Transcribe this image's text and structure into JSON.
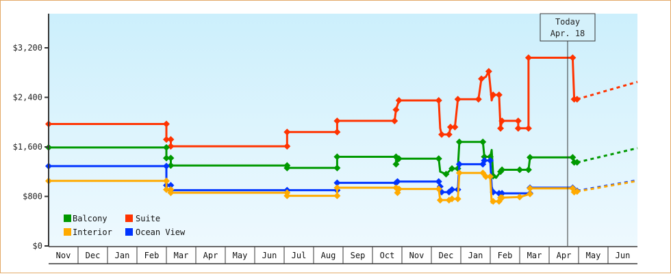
{
  "chart_data": {
    "type": "line",
    "title": "",
    "xlabel": "",
    "ylabel": "",
    "ylim": [
      0,
      3900
    ],
    "yticks": [
      {
        "label": "$0",
        "value": 0
      },
      {
        "label": "$800",
        "value": 800
      },
      {
        "label": "$1,600",
        "value": 1600
      },
      {
        "label": "$2,400",
        "value": 2400
      },
      {
        "label": "$3,200",
        "value": 3200
      }
    ],
    "months": [
      "Nov",
      "Dec",
      "Jan",
      "Feb",
      "Mar",
      "Apr",
      "May",
      "Jun",
      "Jul",
      "Aug",
      "Sep",
      "Oct",
      "Nov",
      "Dec",
      "Jan",
      "Feb",
      "Mar",
      "Apr",
      "May",
      "Jun"
    ],
    "grid": false,
    "legend_position": "bottom-left inside plot",
    "annotation": {
      "line1": "Today",
      "line2": "Apr. 18"
    },
    "series": [
      {
        "name": "Suite",
        "color": "#ff3300",
        "points": [
          [
            0,
            1970
          ],
          [
            4,
            1970
          ],
          [
            4,
            1720
          ],
          [
            4.15,
            1720
          ],
          [
            4.15,
            1610
          ],
          [
            8.1,
            1610
          ],
          [
            8.1,
            1840
          ],
          [
            9.8,
            1840
          ],
          [
            9.8,
            2020
          ],
          [
            11.75,
            2020
          ],
          [
            11.8,
            2200
          ],
          [
            11.9,
            2350
          ],
          [
            13.25,
            2350
          ],
          [
            13.3,
            1900
          ],
          [
            13.35,
            1800
          ],
          [
            13.6,
            1800
          ],
          [
            13.65,
            1920
          ],
          [
            13.8,
            1920
          ],
          [
            13.9,
            2370
          ],
          [
            14.6,
            2370
          ],
          [
            14.7,
            2700
          ],
          [
            14.85,
            2730
          ],
          [
            14.95,
            2820
          ],
          [
            15.05,
            2350
          ],
          [
            15.1,
            2440
          ],
          [
            15.3,
            2440
          ],
          [
            15.35,
            1900
          ],
          [
            15.4,
            2020
          ],
          [
            15.95,
            2020
          ],
          [
            15.95,
            1900
          ],
          [
            16.3,
            1900
          ],
          [
            16.3,
            3040
          ],
          [
            17.8,
            3040
          ],
          [
            17.85,
            2370
          ],
          [
            17.95,
            2370
          ]
        ],
        "projection": [
          [
            17.95,
            2370
          ],
          [
            20,
            2650
          ]
        ]
      },
      {
        "name": "Balcony",
        "color": "#009900",
        "points": [
          [
            0,
            1590
          ],
          [
            4,
            1590
          ],
          [
            4,
            1420
          ],
          [
            4.15,
            1420
          ],
          [
            4.15,
            1300
          ],
          [
            8.1,
            1300
          ],
          [
            8.1,
            1260
          ],
          [
            9.8,
            1260
          ],
          [
            9.8,
            1440
          ],
          [
            11.8,
            1440
          ],
          [
            11.8,
            1320
          ],
          [
            11.9,
            1410
          ],
          [
            13.25,
            1410
          ],
          [
            13.3,
            1200
          ],
          [
            13.5,
            1160
          ],
          [
            13.7,
            1250
          ],
          [
            13.9,
            1250
          ],
          [
            13.95,
            1680
          ],
          [
            14.75,
            1680
          ],
          [
            14.8,
            1440
          ],
          [
            15.0,
            1440
          ],
          [
            15.05,
            1550
          ],
          [
            15.1,
            1130
          ],
          [
            15.2,
            1100
          ],
          [
            15.35,
            1200
          ],
          [
            15.4,
            1230
          ],
          [
            16.0,
            1230
          ],
          [
            16.3,
            1230
          ],
          [
            16.35,
            1430
          ],
          [
            17.8,
            1430
          ],
          [
            17.85,
            1350
          ],
          [
            17.95,
            1350
          ]
        ],
        "projection": [
          [
            17.95,
            1350
          ],
          [
            20,
            1580
          ]
        ]
      },
      {
        "name": "Ocean View",
        "color": "#0033ff",
        "points": [
          [
            0,
            1290
          ],
          [
            4,
            1290
          ],
          [
            4,
            980
          ],
          [
            4.15,
            980
          ],
          [
            4.15,
            900
          ],
          [
            8.1,
            900
          ],
          [
            8.1,
            900
          ],
          [
            9.8,
            900
          ],
          [
            9.8,
            1020
          ],
          [
            11.8,
            1020
          ],
          [
            11.85,
            1040
          ],
          [
            13.25,
            1040
          ],
          [
            13.3,
            960
          ],
          [
            13.35,
            870
          ],
          [
            13.6,
            870
          ],
          [
            13.7,
            910
          ],
          [
            13.9,
            910
          ],
          [
            13.95,
            1320
          ],
          [
            14.75,
            1320
          ],
          [
            14.8,
            1380
          ],
          [
            15.0,
            1380
          ],
          [
            15.05,
            960
          ],
          [
            15.1,
            870
          ],
          [
            15.3,
            850
          ],
          [
            15.4,
            850
          ],
          [
            16.0,
            850
          ],
          [
            16.35,
            850
          ],
          [
            16.35,
            940
          ],
          [
            17.8,
            940
          ],
          [
            17.85,
            900
          ],
          [
            17.95,
            890
          ]
        ],
        "projection": [
          [
            17.95,
            890
          ],
          [
            20,
            1060
          ]
        ]
      },
      {
        "name": "Interior",
        "color": "#ffaa00",
        "points": [
          [
            0,
            1050
          ],
          [
            4,
            1050
          ],
          [
            4,
            910
          ],
          [
            4.15,
            910
          ],
          [
            4.15,
            860
          ],
          [
            8.1,
            860
          ],
          [
            8.1,
            810
          ],
          [
            9.8,
            810
          ],
          [
            9.8,
            940
          ],
          [
            11.8,
            940
          ],
          [
            11.85,
            860
          ],
          [
            11.9,
            920
          ],
          [
            13.25,
            920
          ],
          [
            13.3,
            740
          ],
          [
            13.6,
            740
          ],
          [
            13.7,
            760
          ],
          [
            13.9,
            760
          ],
          [
            13.95,
            1180
          ],
          [
            14.75,
            1180
          ],
          [
            14.85,
            1120
          ],
          [
            15.0,
            1120
          ],
          [
            15.05,
            700
          ],
          [
            15.1,
            720
          ],
          [
            15.3,
            720
          ],
          [
            15.35,
            780
          ],
          [
            15.4,
            780
          ],
          [
            16.0,
            790
          ],
          [
            16.35,
            840
          ],
          [
            16.35,
            930
          ],
          [
            17.8,
            930
          ],
          [
            17.85,
            870
          ],
          [
            17.95,
            880
          ]
        ],
        "projection": [
          [
            17.95,
            880
          ],
          [
            20,
            1050
          ]
        ]
      }
    ],
    "legend": [
      {
        "label": "Balcony",
        "color": "#009900"
      },
      {
        "label": "Suite",
        "color": "#ff3300"
      },
      {
        "label": "Interior",
        "color": "#ffaa00"
      },
      {
        "label": "Ocean View",
        "color": "#0033ff"
      }
    ]
  }
}
